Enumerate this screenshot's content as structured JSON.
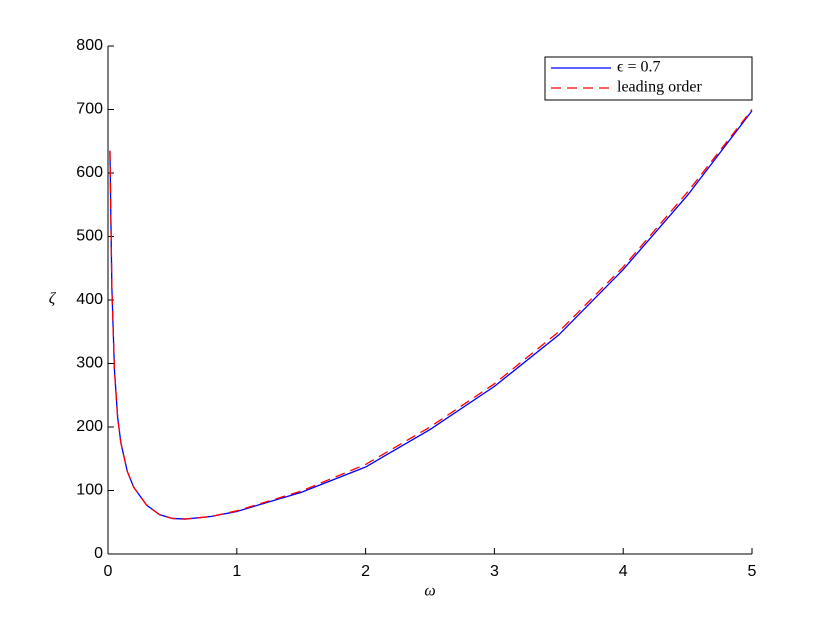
{
  "chart_data": {
    "type": "line",
    "x_label": "ω",
    "y_label": "ζ",
    "x": [
      0.015,
      0.03,
      0.05,
      0.075,
      0.1,
      0.15,
      0.2,
      0.3,
      0.4,
      0.5,
      0.6,
      0.8,
      1,
      1.5,
      2,
      2.5,
      3,
      3.5,
      4,
      4.5,
      5
    ],
    "series": [
      {
        "name": "ϵ = 0.7",
        "color": "#0000ff",
        "dash": false,
        "values": [
          635,
          420,
          290,
          215,
          175,
          130,
          105,
          77,
          62,
          56,
          55,
          59,
          67,
          97,
          137,
          196,
          264,
          345,
          448,
          565,
          698
        ]
      },
      {
        "name": "leading order",
        "color": "#ff0000",
        "dash": true,
        "values": [
          635,
          420,
          290,
          215,
          175,
          130,
          105,
          77,
          62,
          56,
          55,
          59,
          68,
          99,
          141,
          200,
          268,
          350,
          452,
          570,
          700
        ]
      }
    ],
    "xlim": [
      0,
      5
    ],
    "xticks": [
      0,
      1,
      2,
      3,
      4,
      5
    ],
    "ylim": [
      0,
      800
    ],
    "yticks": [
      0,
      100,
      200,
      300,
      400,
      500,
      600,
      700,
      800
    ],
    "grid": false,
    "legend": "top-right"
  }
}
